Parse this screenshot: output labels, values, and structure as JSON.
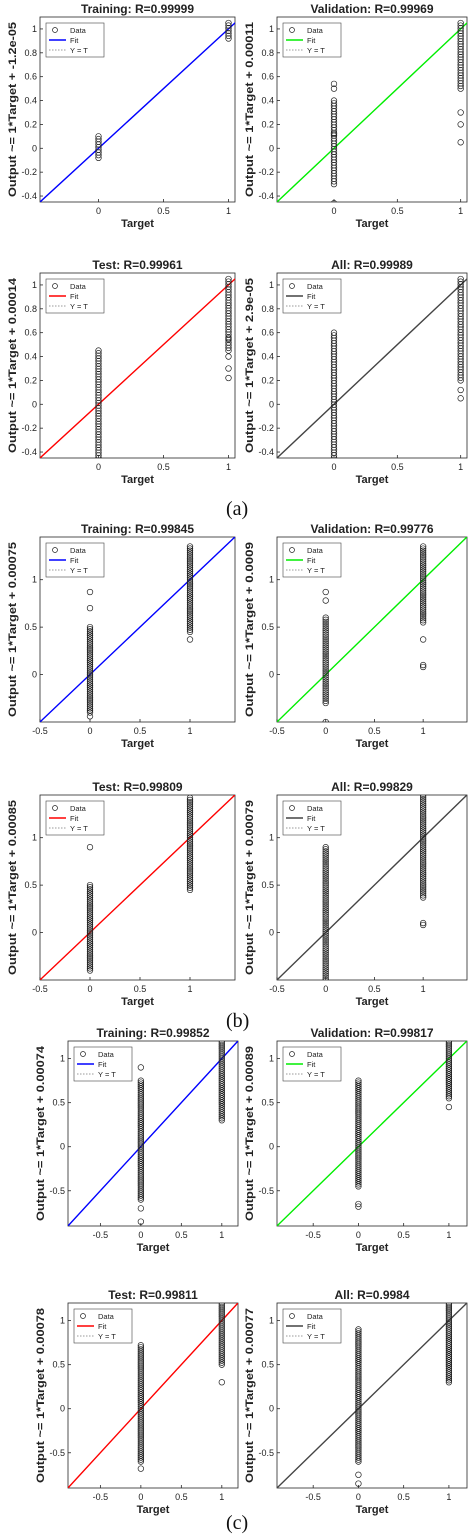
{
  "figure": {
    "panel_labels": [
      "(a)",
      "(b)",
      "(c)"
    ]
  },
  "chart_data": [
    {
      "type": "scatter",
      "group": "(a)",
      "title": "Training: R=0.99999",
      "xlabel": "Target",
      "ylabel": "Output ~= 1*Target + -1.2e-05",
      "xlim": [
        -0.45,
        1.05
      ],
      "ylim": [
        -0.45,
        1.1
      ],
      "xticks": [
        0,
        0.5,
        1
      ],
      "yticks": [
        -0.4,
        -0.2,
        0,
        0.2,
        0.4,
        0.6,
        0.8,
        1
      ],
      "fit_color": "#0000ff",
      "fit": {
        "slope": 1,
        "intercept": -1.2e-05
      },
      "clusters": [
        {
          "x": 0,
          "y_min": -0.08,
          "y_max": 0.1
        },
        {
          "x": 1,
          "y_min": 0.92,
          "y_max": 1.05
        }
      ],
      "outliers": [],
      "legend": [
        "Data",
        "Fit",
        "Y = T"
      ],
      "legend_position": "top-left"
    },
    {
      "type": "scatter",
      "group": "(a)",
      "title": "Validation: R=0.99969",
      "xlabel": "Target",
      "ylabel": "Output ~= 1*Target + 0.00011",
      "xlim": [
        -0.45,
        1.05
      ],
      "ylim": [
        -0.45,
        1.1
      ],
      "xticks": [
        0,
        0.5,
        1
      ],
      "yticks": [
        -0.4,
        -0.2,
        0,
        0.2,
        0.4,
        0.6,
        0.8,
        1
      ],
      "fit_color": "#00ee00",
      "fit": {
        "slope": 1,
        "intercept": 0.00011
      },
      "clusters": [
        {
          "x": 0,
          "y_min": -0.3,
          "y_max": 0.4
        },
        {
          "x": 1,
          "y_min": 0.5,
          "y_max": 1.05
        }
      ],
      "outliers": [
        [
          0,
          -0.46
        ],
        [
          0,
          0.54
        ],
        [
          0,
          0.5
        ],
        [
          0,
          0.12
        ],
        [
          1,
          0.2
        ],
        [
          1,
          0.05
        ],
        [
          1,
          0.3
        ]
      ],
      "legend": [
        "Data",
        "Fit",
        "Y = T"
      ],
      "legend_position": "top-left"
    },
    {
      "type": "scatter",
      "group": "(a)",
      "title": "Test: R=0.99961",
      "xlabel": "Target",
      "ylabel": "Output ~= 1*Target + 0.00014",
      "xlim": [
        -0.45,
        1.05
      ],
      "ylim": [
        -0.45,
        1.1
      ],
      "xticks": [
        0,
        0.5,
        1
      ],
      "yticks": [
        -0.4,
        -0.2,
        0,
        0.2,
        0.4,
        0.6,
        0.8,
        1
      ],
      "fit_color": "#ff0000",
      "fit": {
        "slope": 1,
        "intercept": 0.00014
      },
      "clusters": [
        {
          "x": 0,
          "y_min": -0.45,
          "y_max": 0.45
        },
        {
          "x": 1,
          "y_min": 0.45,
          "y_max": 1.05
        }
      ],
      "outliers": [
        [
          1,
          0.22
        ],
        [
          1,
          0.3
        ],
        [
          1,
          0.4
        ],
        [
          1,
          0.55
        ]
      ],
      "legend": [
        "Data",
        "Fit",
        "Y = T"
      ],
      "legend_position": "top-left"
    },
    {
      "type": "scatter",
      "group": "(a)",
      "title": "All: R=0.99989",
      "xlabel": "Target",
      "ylabel": "Output ~= 1*Target + 2.9e-05",
      "xlim": [
        -0.45,
        1.05
      ],
      "ylim": [
        -0.45,
        1.1
      ],
      "xticks": [
        0,
        0.5,
        1
      ],
      "yticks": [
        -0.4,
        -0.2,
        0,
        0.2,
        0.4,
        0.6,
        0.8,
        1
      ],
      "fit_color": "#444444",
      "fit": {
        "slope": 1,
        "intercept": 2.9e-05
      },
      "clusters": [
        {
          "x": 0,
          "y_min": -0.45,
          "y_max": 0.6
        },
        {
          "x": 1,
          "y_min": 0.2,
          "y_max": 1.05
        }
      ],
      "outliers": [
        [
          1,
          0.05
        ],
        [
          1,
          0.12
        ]
      ],
      "legend": [
        "Data",
        "Fit",
        "Y = T"
      ],
      "legend_position": "top-left"
    },
    {
      "type": "scatter",
      "group": "(b)",
      "title": "Training: R=0.99845",
      "xlabel": "Target",
      "ylabel": "Output ~= 1*Target + 0.00075",
      "xlim": [
        -0.5,
        1.45
      ],
      "ylim": [
        -0.5,
        1.45
      ],
      "xticks": [
        -0.5,
        0,
        0.5,
        1
      ],
      "yticks": [
        0,
        0.5,
        1
      ],
      "fit_color": "#0000ff",
      "fit": {
        "slope": 1,
        "intercept": 0.00075
      },
      "clusters": [
        {
          "x": 0,
          "y_min": -0.4,
          "y_max": 0.5
        },
        {
          "x": 1,
          "y_min": 0.45,
          "y_max": 1.35
        }
      ],
      "outliers": [
        [
          0,
          0.87
        ],
        [
          0,
          0.7
        ],
        [
          1,
          0.37
        ],
        [
          0,
          -0.44
        ]
      ],
      "legend": [
        "Data",
        "Fit",
        "Y = T"
      ],
      "legend_position": "top-left"
    },
    {
      "type": "scatter",
      "group": "(b)",
      "title": "Validation: R=0.99776",
      "xlabel": "Target",
      "ylabel": "Output ~= 1*Target + 0.0009",
      "xlim": [
        -0.5,
        1.45
      ],
      "ylim": [
        -0.5,
        1.45
      ],
      "xticks": [
        -0.5,
        0,
        0.5,
        1
      ],
      "yticks": [
        0,
        0.5,
        1
      ],
      "fit_color": "#00ee00",
      "fit": {
        "slope": 1,
        "intercept": 0.0009
      },
      "clusters": [
        {
          "x": 0,
          "y_min": -0.3,
          "y_max": 0.6
        },
        {
          "x": 1,
          "y_min": 0.55,
          "y_max": 1.35
        }
      ],
      "outliers": [
        [
          0,
          0.87
        ],
        [
          0,
          0.78
        ],
        [
          0,
          -0.5
        ],
        [
          1,
          0.1
        ],
        [
          1,
          0.08
        ],
        [
          1,
          0.37
        ]
      ],
      "legend": [
        "Data",
        "Fit",
        "Y = T"
      ],
      "legend_position": "top-left"
    },
    {
      "type": "scatter",
      "group": "(b)",
      "title": "Test: R=0.99809",
      "xlabel": "Target",
      "ylabel": "Output ~= 1*Target + 0.00085",
      "xlim": [
        -0.5,
        1.45
      ],
      "ylim": [
        -0.5,
        1.45
      ],
      "xticks": [
        -0.5,
        0,
        0.5,
        1
      ],
      "yticks": [
        0,
        0.5,
        1
      ],
      "fit_color": "#ff0000",
      "fit": {
        "slope": 1,
        "intercept": 0.00085
      },
      "clusters": [
        {
          "x": 0,
          "y_min": -0.4,
          "y_max": 0.5
        },
        {
          "x": 1,
          "y_min": 0.45,
          "y_max": 1.42
        }
      ],
      "outliers": [
        [
          0,
          0.9
        ]
      ],
      "legend": [
        "Data",
        "Fit",
        "Y = T"
      ],
      "legend_position": "top-left"
    },
    {
      "type": "scatter",
      "group": "(b)",
      "title": "All: R=0.99829",
      "xlabel": "Target",
      "ylabel": "Output ~= 1*Target + 0.00079",
      "xlim": [
        -0.5,
        1.45
      ],
      "ylim": [
        -0.5,
        1.45
      ],
      "xticks": [
        -0.5,
        0,
        0.5,
        1
      ],
      "yticks": [
        0,
        0.5,
        1
      ],
      "fit_color": "#444444",
      "fit": {
        "slope": 1,
        "intercept": 0.00079
      },
      "clusters": [
        {
          "x": 0,
          "y_min": -0.5,
          "y_max": 0.9
        },
        {
          "x": 1,
          "y_min": 0.37,
          "y_max": 1.45
        }
      ],
      "outliers": [
        [
          1,
          0.1
        ],
        [
          1,
          0.08
        ]
      ],
      "legend": [
        "Data",
        "Fit",
        "Y = T"
      ],
      "legend_position": "top-left"
    },
    {
      "type": "scatter",
      "group": "(c)",
      "title": "Training: R=0.99852",
      "xlabel": "Target",
      "ylabel": "Output ~= 1*Target + 0.00074",
      "xlim": [
        -0.9,
        1.2
      ],
      "ylim": [
        -0.9,
        1.2
      ],
      "xticks": [
        -0.5,
        0,
        0.5,
        1
      ],
      "yticks": [
        -0.5,
        0,
        0.5,
        1
      ],
      "fit_color": "#0000ff",
      "fit": {
        "slope": 1,
        "intercept": 0.00074
      },
      "clusters": [
        {
          "x": 0,
          "y_min": -0.6,
          "y_max": 0.75
        },
        {
          "x": 1,
          "y_min": 0.3,
          "y_max": 1.2
        }
      ],
      "outliers": [
        [
          0,
          0.9
        ],
        [
          0,
          -0.7
        ],
        [
          0,
          -0.85
        ]
      ],
      "legend": [
        "Data",
        "Fit",
        "Y = T"
      ],
      "legend_position": "top-left"
    },
    {
      "type": "scatter",
      "group": "(c)",
      "title": "Validation: R=0.99817",
      "xlabel": "Target",
      "ylabel": "Output ~= 1*Target + 0.00089",
      "xlim": [
        -0.9,
        1.2
      ],
      "ylim": [
        -0.9,
        1.2
      ],
      "xticks": [
        -0.5,
        0,
        0.5,
        1
      ],
      "yticks": [
        -0.5,
        0,
        0.5,
        1
      ],
      "fit_color": "#00ee00",
      "fit": {
        "slope": 1,
        "intercept": 0.00089
      },
      "clusters": [
        {
          "x": 0,
          "y_min": -0.45,
          "y_max": 0.75
        },
        {
          "x": 1,
          "y_min": 0.55,
          "y_max": 1.2
        }
      ],
      "outliers": [
        [
          0,
          -0.65
        ],
        [
          0,
          -0.68
        ],
        [
          1,
          0.45
        ]
      ],
      "legend": [
        "Data",
        "Fit",
        "Y = T"
      ],
      "legend_position": "top-left"
    },
    {
      "type": "scatter",
      "group": "(c)",
      "title": "Test: R=0.99811",
      "xlabel": "Target",
      "ylabel": "Output ~= 1*Target + 0.00078",
      "xlim": [
        -0.9,
        1.2
      ],
      "ylim": [
        -0.9,
        1.2
      ],
      "xticks": [
        -0.5,
        0,
        0.5,
        1
      ],
      "yticks": [
        -0.5,
        0,
        0.5,
        1
      ],
      "fit_color": "#ff0000",
      "fit": {
        "slope": 1,
        "intercept": 0.00078
      },
      "clusters": [
        {
          "x": 0,
          "y_min": -0.6,
          "y_max": 0.72
        },
        {
          "x": 1,
          "y_min": 0.5,
          "y_max": 1.2
        }
      ],
      "outliers": [
        [
          1,
          0.3
        ],
        [
          0,
          -0.68
        ]
      ],
      "legend": [
        "Data",
        "Fit",
        "Y = T"
      ],
      "legend_position": "top-left"
    },
    {
      "type": "scatter",
      "group": "(c)",
      "title": "All: R=0.9984",
      "xlabel": "Target",
      "ylabel": "Output ~= 1*Target + 0.00077",
      "xlim": [
        -0.9,
        1.2
      ],
      "ylim": [
        -0.9,
        1.2
      ],
      "xticks": [
        -0.5,
        0,
        0.5,
        1
      ],
      "yticks": [
        -0.5,
        0,
        0.5,
        1
      ],
      "fit_color": "#444444",
      "fit": {
        "slope": 1,
        "intercept": 0.00077
      },
      "clusters": [
        {
          "x": 0,
          "y_min": -0.6,
          "y_max": 0.9
        },
        {
          "x": 1,
          "y_min": 0.3,
          "y_max": 1.2
        }
      ],
      "outliers": [
        [
          0,
          -0.75
        ],
        [
          0,
          -0.85
        ]
      ],
      "legend": [
        "Data",
        "Fit",
        "Y = T"
      ],
      "legend_position": "top-left"
    }
  ]
}
